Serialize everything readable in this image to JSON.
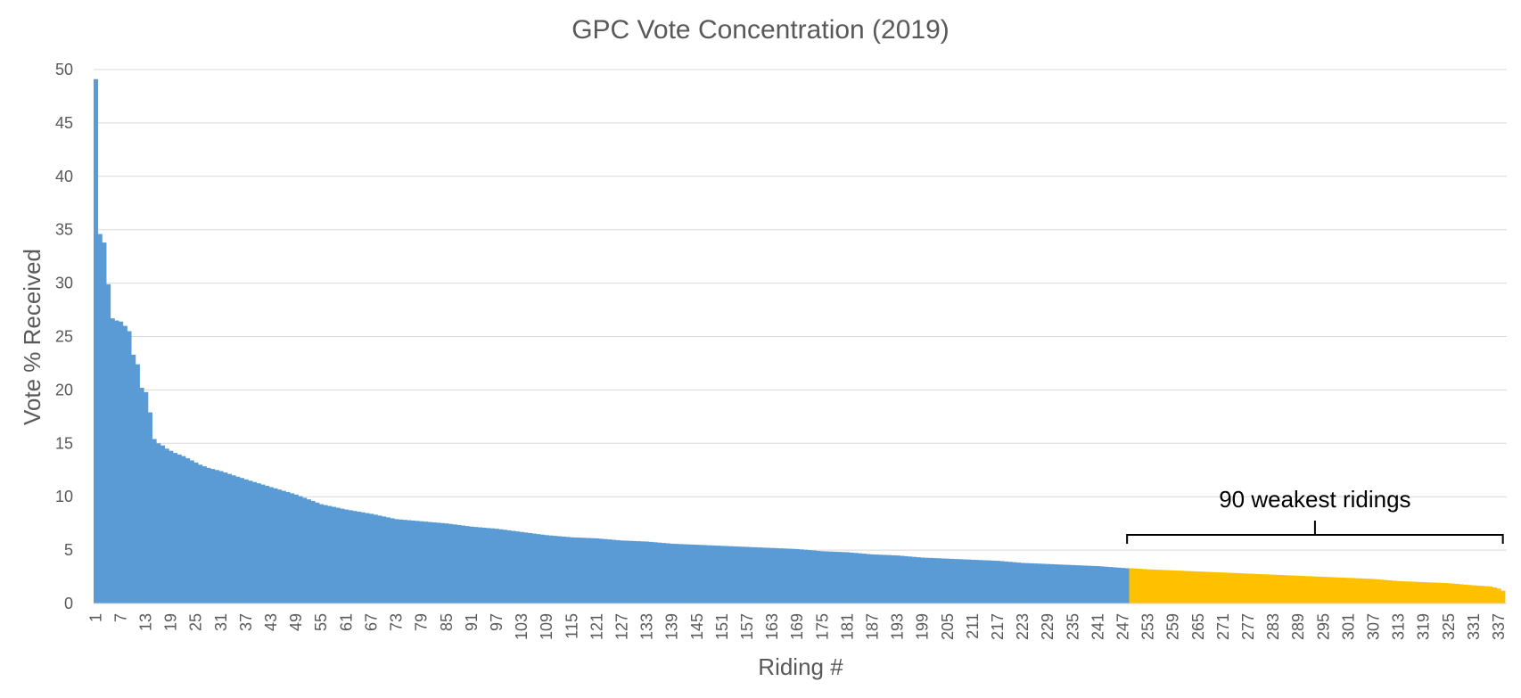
{
  "chart_data": {
    "type": "bar",
    "title": "GPC Vote Concentration (2019)",
    "xlabel": "Riding #",
    "ylabel": "Vote % Received",
    "ylim": [
      0,
      50
    ],
    "yticks": [
      0,
      5,
      10,
      15,
      20,
      25,
      30,
      35,
      40,
      45,
      50
    ],
    "xlim": [
      1,
      338
    ],
    "xtick_start": 1,
    "xtick_step": 6,
    "xticks": [
      "1",
      "7",
      "13",
      "19",
      "25",
      "31",
      "37",
      "43",
      "49",
      "55",
      "61",
      "67",
      "73",
      "79",
      "85",
      "91",
      "97",
      "103",
      "109",
      "115",
      "121",
      "127",
      "133",
      "139",
      "145",
      "151",
      "157",
      "163",
      "169",
      "175",
      "181",
      "187",
      "193",
      "199",
      "205",
      "211",
      "217",
      "223",
      "229",
      "235",
      "241",
      "247",
      "253",
      "259",
      "265",
      "271",
      "277",
      "283",
      "289",
      "295",
      "301",
      "307",
      "313",
      "319",
      "325",
      "331",
      "337"
    ],
    "grid": "horizontal",
    "series": [
      {
        "color": "#5B9BD5",
        "x_range": [
          1,
          248
        ],
        "profile": [
          [
            1,
            49.1
          ],
          [
            2,
            34.6
          ],
          [
            3,
            33.8
          ],
          [
            4,
            29.9
          ],
          [
            5,
            26.7
          ],
          [
            6,
            26.5
          ],
          [
            7,
            26.4
          ],
          [
            8,
            26.0
          ],
          [
            9,
            25.5
          ],
          [
            10,
            23.3
          ],
          [
            11,
            22.4
          ],
          [
            12,
            20.2
          ],
          [
            13,
            19.8
          ],
          [
            14,
            17.9
          ],
          [
            15,
            15.4
          ],
          [
            16,
            15.0
          ],
          [
            17,
            14.8
          ],
          [
            18,
            14.5
          ],
          [
            19,
            14.3
          ],
          [
            20,
            14.1
          ],
          [
            22,
            13.8
          ],
          [
            24,
            13.4
          ],
          [
            26,
            13.0
          ],
          [
            28,
            12.7
          ],
          [
            31,
            12.4
          ],
          [
            34,
            12.0
          ],
          [
            38,
            11.5
          ],
          [
            43,
            10.9
          ],
          [
            49,
            10.2
          ],
          [
            55,
            9.3
          ],
          [
            61,
            8.8
          ],
          [
            67,
            8.4
          ],
          [
            73,
            7.9
          ],
          [
            79,
            7.7
          ],
          [
            85,
            7.5
          ],
          [
            91,
            7.2
          ],
          [
            97,
            7.0
          ],
          [
            103,
            6.7
          ],
          [
            109,
            6.4
          ],
          [
            115,
            6.2
          ],
          [
            121,
            6.1
          ],
          [
            127,
            5.9
          ],
          [
            133,
            5.8
          ],
          [
            139,
            5.6
          ],
          [
            145,
            5.5
          ],
          [
            151,
            5.4
          ],
          [
            157,
            5.3
          ],
          [
            163,
            5.2
          ],
          [
            169,
            5.1
          ],
          [
            175,
            4.9
          ],
          [
            181,
            4.8
          ],
          [
            187,
            4.6
          ],
          [
            193,
            4.5
          ],
          [
            199,
            4.3
          ],
          [
            205,
            4.2
          ],
          [
            211,
            4.1
          ],
          [
            217,
            4.0
          ],
          [
            223,
            3.8
          ],
          [
            229,
            3.7
          ],
          [
            235,
            3.6
          ],
          [
            241,
            3.5
          ],
          [
            248,
            3.3
          ]
        ]
      },
      {
        "color": "#FFC000",
        "x_range": [
          249,
          338
        ],
        "profile": [
          [
            249,
            3.3
          ],
          [
            253,
            3.2
          ],
          [
            259,
            3.1
          ],
          [
            265,
            3.0
          ],
          [
            271,
            2.9
          ],
          [
            277,
            2.8
          ],
          [
            283,
            2.7
          ],
          [
            289,
            2.6
          ],
          [
            295,
            2.5
          ],
          [
            301,
            2.4
          ],
          [
            307,
            2.3
          ],
          [
            313,
            2.1
          ],
          [
            319,
            2.0
          ],
          [
            325,
            1.9
          ],
          [
            331,
            1.7
          ],
          [
            335,
            1.6
          ],
          [
            337,
            1.4
          ],
          [
            338,
            1.2
          ]
        ]
      }
    ],
    "annotations": [
      {
        "text": "90 weakest ridings",
        "x_start": 248,
        "x_end": 338
      }
    ]
  }
}
